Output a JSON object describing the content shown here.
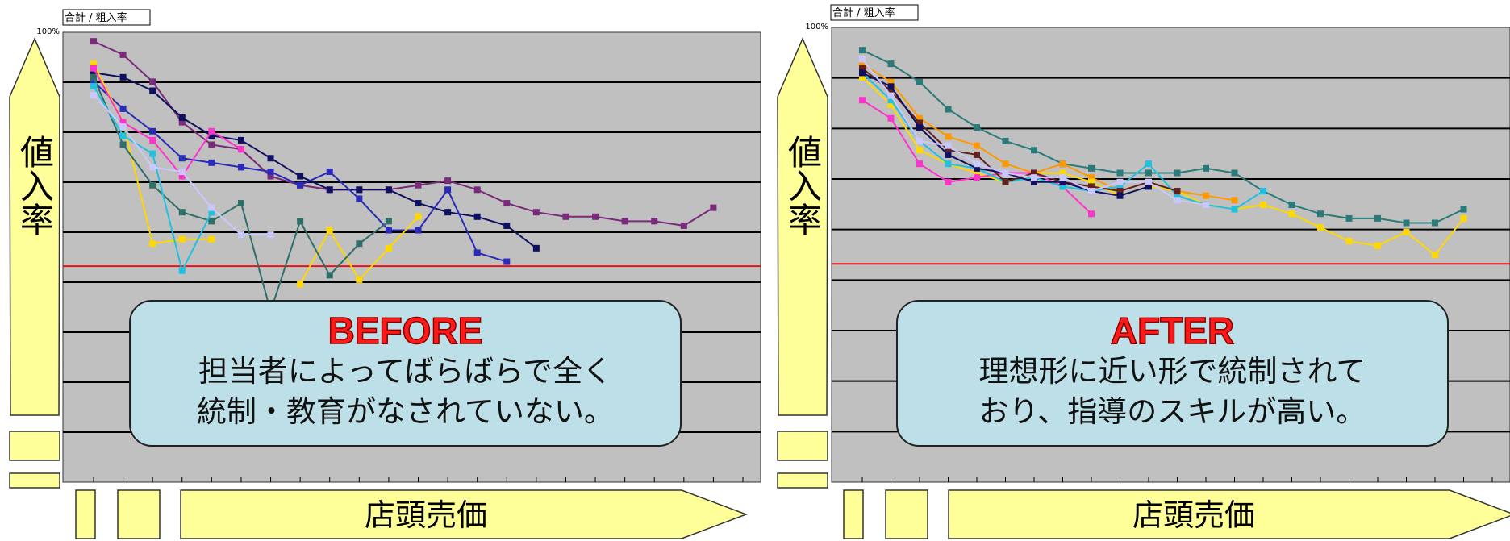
{
  "chart_data": [
    {
      "type": "line",
      "title": "合計 / 粗入率",
      "ytick_top": "100%",
      "ylabel": "値入率",
      "xlabel": "店頭売価",
      "ylim": [
        0,
        100
      ],
      "x_count": 22,
      "grid": "horizontal",
      "reference_line_pct": 48,
      "callout": {
        "heading": "BEFORE",
        "lines": [
          "担当者によってばらばらで全く",
          "統制・教育がなされていない。"
        ]
      },
      "series": [
        {
          "color": "#7a2a7a",
          "values": [
            98,
            95,
            89,
            80,
            75,
            74,
            68,
            66,
            65,
            65,
            65,
            66,
            67,
            65,
            62,
            60,
            59,
            59,
            58,
            58,
            57,
            61
          ]
        },
        {
          "color": "#101060",
          "values": [
            91,
            90,
            87,
            81,
            77,
            76,
            72,
            68,
            65,
            65,
            65,
            62,
            60,
            59,
            57,
            52,
            null,
            null,
            null,
            null,
            null,
            null
          ]
        },
        {
          "color": "#2a2ab8",
          "values": [
            89,
            83,
            78,
            72,
            71,
            70,
            69,
            66,
            69,
            63,
            56,
            56,
            65,
            51,
            49,
            null,
            null,
            null,
            null,
            null,
            null,
            null
          ]
        },
        {
          "color": "#ffd800",
          "values": [
            93,
            80,
            53,
            54,
            54,
            null,
            null,
            44,
            56,
            45,
            52,
            59,
            null,
            null,
            null,
            null,
            null,
            null,
            null,
            null,
            null,
            null
          ]
        },
        {
          "color": "#2e6e66",
          "values": [
            90,
            75,
            66,
            60,
            58,
            62,
            38,
            58,
            46,
            53,
            58,
            null,
            null,
            null,
            null,
            null,
            null,
            null,
            null,
            null,
            null,
            null
          ]
        },
        {
          "color": "#ff33cc",
          "values": [
            92,
            80,
            76,
            68,
            78,
            74,
            null,
            null,
            null,
            null,
            null,
            null,
            null,
            null,
            null,
            null,
            null,
            null,
            null,
            null,
            null,
            null
          ]
        },
        {
          "color": "#20c0e0",
          "values": [
            88,
            77,
            73,
            47,
            60,
            null,
            null,
            null,
            null,
            null,
            null,
            null,
            null,
            null,
            null,
            null,
            null,
            null,
            null,
            null,
            null,
            null
          ]
        },
        {
          "color": "#c8c8ff",
          "values": [
            86,
            79,
            70,
            69,
            61,
            55,
            55,
            null,
            null,
            null,
            null,
            null,
            null,
            null,
            null,
            null,
            null,
            null,
            null,
            null,
            null,
            null
          ]
        }
      ]
    },
    {
      "type": "line",
      "title": "合計 / 粗入率",
      "ytick_top": "100%",
      "ylabel": "値入率",
      "xlabel": "店頭売価",
      "ylim": [
        0,
        100
      ],
      "x_count": 22,
      "grid": "horizontal",
      "reference_line_pct": 48,
      "callout": {
        "heading": "AFTER",
        "lines": [
          "理想形に近い形で統制されて",
          "おり、指導のスキルが高い。"
        ]
      },
      "series": [
        {
          "color": "#2a7a7a",
          "values": [
            95,
            92,
            88,
            82,
            78,
            75,
            73,
            70,
            69,
            68,
            68,
            68,
            69,
            68,
            64,
            61,
            59,
            58,
            58,
            57,
            57,
            60
          ]
        },
        {
          "color": "#ff9900",
          "values": [
            92,
            88,
            80,
            76,
            74,
            70,
            68,
            70,
            67,
            64,
            66,
            64,
            63,
            62,
            null,
            null,
            null,
            null,
            null,
            null,
            null,
            null
          ]
        },
        {
          "color": "#ffd800",
          "values": [
            89,
            83,
            73,
            70,
            68,
            66,
            68,
            68,
            66,
            63,
            65,
            64,
            61,
            60,
            61,
            59,
            56,
            53,
            52,
            55,
            50,
            58
          ]
        },
        {
          "color": "#ff33cc",
          "values": [
            84,
            80,
            70,
            66,
            67,
            68,
            68,
            65,
            59,
            null,
            null,
            null,
            null,
            null,
            null,
            null,
            null,
            null,
            null,
            null,
            null,
            null
          ]
        },
        {
          "color": "#20c0e0",
          "values": [
            90,
            84,
            75,
            70,
            69,
            66,
            67,
            65,
            64,
            65,
            70,
            63,
            61,
            60,
            64,
            null,
            null,
            null,
            null,
            null,
            null,
            null
          ]
        },
        {
          "color": "#602020",
          "values": [
            91,
            86,
            79,
            73,
            72,
            66,
            68,
            66,
            65,
            64,
            66,
            64,
            null,
            null,
            null,
            null,
            null,
            null,
            null,
            null,
            null,
            null
          ]
        },
        {
          "color": "#101060",
          "values": [
            90,
            87,
            78,
            72,
            69,
            68,
            66,
            66,
            64,
            63,
            65,
            null,
            null,
            null,
            null,
            null,
            null,
            null,
            null,
            null,
            null,
            null
          ]
        },
        {
          "color": "#c8c8ff",
          "values": [
            93,
            85,
            75,
            74,
            70,
            68,
            67,
            67,
            64,
            66,
            66,
            62,
            61,
            null,
            null,
            null,
            null,
            null,
            null,
            null,
            null,
            null
          ]
        }
      ]
    }
  ]
}
